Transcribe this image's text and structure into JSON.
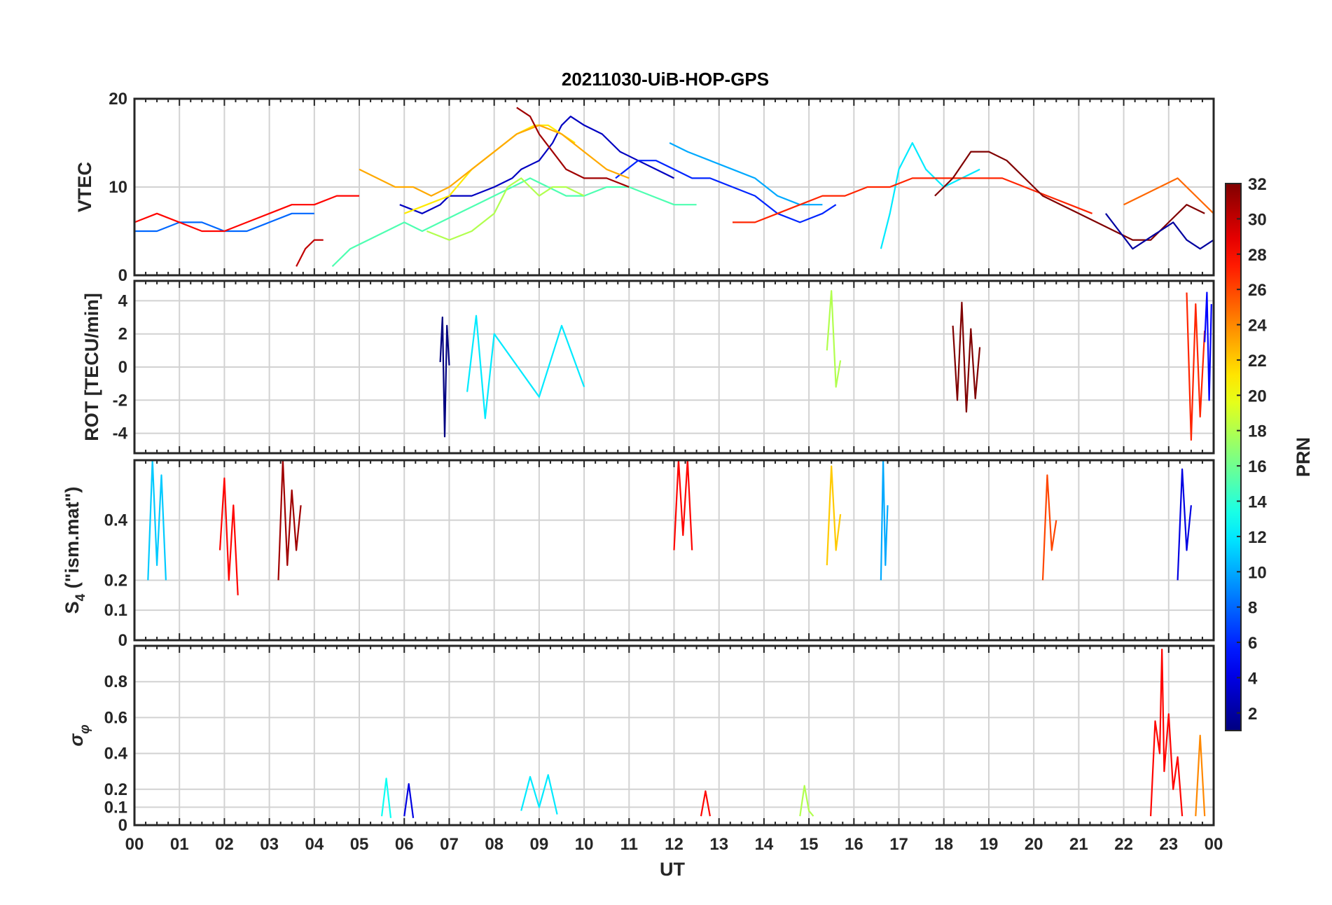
{
  "chart_data": {
    "type": "line",
    "title": "20211030-UiB-HOP-GPS",
    "xlabel": "UT",
    "x_tick_labels": [
      "00",
      "01",
      "02",
      "03",
      "04",
      "05",
      "06",
      "07",
      "08",
      "09",
      "10",
      "11",
      "12",
      "13",
      "14",
      "15",
      "16",
      "17",
      "18",
      "19",
      "20",
      "21",
      "22",
      "23",
      "00"
    ],
    "xlim_hours": [
      0,
      24
    ],
    "colorbar": {
      "label": "PRN",
      "range": [
        1,
        32
      ],
      "tick_labels": [
        "2",
        "4",
        "6",
        "8",
        "10",
        "12",
        "14",
        "16",
        "18",
        "20",
        "22",
        "24",
        "26",
        "28",
        "30",
        "32"
      ],
      "colormap": "jet"
    },
    "panels": [
      {
        "id": "vtec",
        "ylabel": "VTEC",
        "ylim": [
          0,
          20
        ],
        "y_ticks": [
          0,
          10,
          20
        ],
        "y_tick_labels": [
          "0",
          "10",
          "20"
        ],
        "series": [
          {
            "name": "PRN 3",
            "prn": 3,
            "t": [
              5.9,
              6.4,
              6.8,
              7.0,
              7.5,
              8.0,
              8.4,
              8.6,
              9.0,
              9.3,
              9.5,
              9.7,
              10.0,
              10.4,
              10.8,
              11.2,
              11.6,
              12.0
            ],
            "v": [
              8,
              7,
              8,
              9,
              9,
              10,
              11,
              12,
              13,
              15,
              17,
              18,
              17,
              16,
              14,
              13,
              12,
              11
            ]
          },
          {
            "name": "PRN 6",
            "prn": 6,
            "t": [
              10.7,
              11.2,
              11.6,
              12.0,
              12.4,
              12.8,
              13.3,
              13.8,
              14.3,
              14.8,
              15.3,
              15.6
            ],
            "v": [
              11,
              13,
              13,
              12,
              11,
              11,
              10,
              9,
              7,
              6,
              7,
              8
            ]
          },
          {
            "name": "PRN 10",
            "prn": 10,
            "t": [
              11.9,
              12.3,
              12.8,
              13.3,
              13.8,
              14.3,
              14.8,
              15.3
            ],
            "v": [
              15,
              14,
              13,
              12,
              11,
              9,
              8,
              8
            ]
          },
          {
            "name": "PRN 12",
            "prn": 12,
            "t": [
              16.6,
              16.8,
              17.0,
              17.3,
              17.6,
              18.0,
              18.4,
              18.8
            ],
            "v": [
              3,
              7,
              12,
              15,
              12,
              10,
              11,
              12
            ]
          },
          {
            "name": "PRN 15",
            "prn": 15,
            "t": [
              4.4,
              4.8,
              5.2,
              5.6,
              6.0,
              6.4,
              6.8,
              7.2,
              7.6,
              8.0,
              8.4,
              8.8,
              9.2,
              9.6,
              10.0,
              10.5,
              11.0,
              11.5,
              12.0,
              12.5
            ],
            "v": [
              1,
              3,
              4,
              5,
              6,
              5,
              6,
              7,
              8,
              9,
              10,
              11,
              10,
              9,
              9,
              10,
              10,
              9,
              8,
              8
            ]
          },
          {
            "name": "PRN 18",
            "prn": 18,
            "t": [
              6.5,
              7.0,
              7.5,
              8.0,
              8.3,
              8.6,
              8.8,
              9.0,
              9.3,
              9.6,
              10.0
            ],
            "v": [
              5,
              4,
              5,
              7,
              10,
              11,
              10,
              9,
              10,
              10,
              9
            ]
          },
          {
            "name": "PRN 21",
            "prn": 21,
            "t": [
              6.0,
              6.5,
              7.0,
              7.5,
              8.0,
              8.5,
              8.9,
              9.2,
              9.5,
              9.8
            ],
            "v": [
              7,
              8,
              9,
              12,
              14,
              16,
              17,
              17,
              16,
              15
            ]
          },
          {
            "name": "PRN 23",
            "prn": 23,
            "t": [
              5.0,
              5.4,
              5.8,
              6.2,
              6.6,
              7.0,
              7.5,
              8.0,
              8.5,
              9.0,
              9.5,
              10.0,
              10.5,
              11.0
            ],
            "v": [
              12,
              11,
              10,
              10,
              9,
              10,
              12,
              14,
              16,
              17,
              16,
              14,
              12,
              11
            ]
          },
          {
            "name": "PRN 27",
            "prn": 27,
            "t": [
              13.3,
              13.8,
              14.3,
              14.8,
              15.3,
              15.8,
              16.3,
              16.8,
              17.3,
              17.8,
              18.3,
              18.8,
              19.3,
              19.8,
              20.3,
              20.8,
              21.3
            ],
            "v": [
              6,
              6,
              7,
              8,
              9,
              9,
              10,
              10,
              11,
              11,
              11,
              11,
              11,
              10,
              9,
              8,
              7
            ]
          },
          {
            "name": "PRN 30",
            "prn": 30,
            "t": [
              3.6,
              3.8,
              4.0,
              4.2
            ],
            "v": [
              1,
              3,
              4,
              4
            ]
          },
          {
            "name": "PRN 31",
            "prn": 31,
            "t": [
              8.5,
              8.8,
              9.0,
              9.3,
              9.6,
              10.0,
              10.5,
              11.0
            ],
            "v": [
              19,
              18,
              16,
              14,
              12,
              11,
              11,
              10
            ]
          },
          {
            "name": "PRN 32",
            "prn": 32,
            "t": [
              17.8,
              18.2,
              18.6,
              19.0,
              19.4,
              19.8,
              20.2,
              20.6,
              21.0,
              21.4,
              21.8,
              22.2,
              22.6,
              23.0,
              23.4,
              23.8
            ],
            "v": [
              9,
              11,
              14,
              14,
              13,
              11,
              9,
              8,
              7,
              6,
              5,
              4,
              4,
              6,
              8,
              7
            ]
          },
          {
            "name": "PRN 2",
            "prn": 2,
            "t": [
              21.6,
              21.9,
              22.2,
              22.5,
              22.8,
              23.1,
              23.4,
              23.7,
              24.0
            ],
            "v": [
              7,
              5,
              3,
              4,
              5,
              6,
              4,
              3,
              4
            ]
          },
          {
            "name": "PRN 8",
            "prn": 8,
            "t": [
              0,
              0.5,
              1.0,
              1.5,
              2.0,
              2.5,
              3.0,
              3.5,
              4.0
            ],
            "v": [
              5,
              5,
              6,
              6,
              5,
              5,
              6,
              7,
              7
            ]
          },
          {
            "name": "PRN 28",
            "prn": 28,
            "t": [
              0,
              0.5,
              1.0,
              1.5,
              2.0,
              2.5,
              3.0,
              3.5,
              4.0,
              4.5,
              5.0
            ],
            "v": [
              6,
              7,
              6,
              5,
              5,
              6,
              7,
              8,
              8,
              9,
              9
            ]
          },
          {
            "name": "PRN 25",
            "prn": 25,
            "t": [
              22.0,
              22.4,
              22.8,
              23.2,
              23.6,
              24.0
            ],
            "v": [
              8,
              9,
              10,
              11,
              9,
              7
            ]
          }
        ]
      },
      {
        "id": "rot",
        "ylabel": "ROT [TECU/min]",
        "ylim": [
          -5.2,
          5.2
        ],
        "y_ticks": [
          -4,
          -2,
          0,
          2,
          4
        ],
        "y_tick_labels": [
          "-4",
          "-2",
          "0",
          "2",
          "4"
        ],
        "series": [
          {
            "name": "PRN 1",
            "prn": 1,
            "t": [
              6.8,
              6.85,
              6.9,
              6.95,
              7.0
            ],
            "v": [
              0.3,
              3.0,
              -4.2,
              2.5,
              0.1
            ]
          },
          {
            "name": "PRN 12",
            "prn": 12,
            "t": [
              7.4,
              7.6,
              7.8,
              8.0,
              9.0,
              9.5,
              10.0
            ],
            "v": [
              -1.5,
              3.1,
              -3.1,
              2.0,
              -1.8,
              2.5,
              -1.2
            ]
          },
          {
            "name": "PRN 18",
            "prn": 18,
            "t": [
              15.4,
              15.5,
              15.6,
              15.7
            ],
            "v": [
              1.0,
              4.6,
              -1.2,
              0.4
            ]
          },
          {
            "name": "PRN 32",
            "prn": 32,
            "t": [
              18.2,
              18.3,
              18.4,
              18.5,
              18.6,
              18.7,
              18.8
            ],
            "v": [
              2.5,
              -2.0,
              3.9,
              -2.7,
              2.3,
              -1.9,
              1.2
            ]
          },
          {
            "name": "PRN 27",
            "prn": 27,
            "t": [
              23.4,
              23.5,
              23.6,
              23.7,
              23.8
            ],
            "v": [
              4.5,
              -4.4,
              3.8,
              -3.0,
              2.2
            ]
          },
          {
            "name": "PRN 5",
            "prn": 5,
            "t": [
              23.8,
              23.85,
              23.9,
              23.95
            ],
            "v": [
              1.5,
              4.5,
              -2.0,
              3.8
            ]
          }
        ]
      },
      {
        "id": "s4",
        "ylabel": "S4 (\"ism.mat\")",
        "ylim": [
          0,
          0.6
        ],
        "y_ticks": [
          0,
          0.1,
          0.2,
          0.4
        ],
        "y_tick_labels": [
          "0",
          "0.1",
          "0.2",
          "0.4"
        ],
        "series": [
          {
            "name": "PRN 11",
            "prn": 11,
            "t": [
              0.3,
              0.4,
              0.5,
              0.6,
              0.7
            ],
            "v": [
              0.2,
              0.6,
              0.25,
              0.55,
              0.2
            ]
          },
          {
            "name": "PRN 28",
            "prn": 28,
            "t": [
              1.9,
              2.0,
              2.1,
              2.2,
              2.3
            ],
            "v": [
              0.3,
              0.54,
              0.2,
              0.45,
              0.15
            ]
          },
          {
            "name": "PRN 31",
            "prn": 31,
            "t": [
              3.2,
              3.3,
              3.4,
              3.5,
              3.6,
              3.7
            ],
            "v": [
              0.2,
              0.6,
              0.25,
              0.5,
              0.3,
              0.45
            ]
          },
          {
            "name": "PRN 28",
            "prn": 28,
            "t": [
              12.0,
              12.1,
              12.2,
              12.3,
              12.4
            ],
            "v": [
              0.3,
              0.6,
              0.35,
              0.6,
              0.3
            ]
          },
          {
            "name": "PRN 22",
            "prn": 22,
            "t": [
              15.4,
              15.5,
              15.6,
              15.7
            ],
            "v": [
              0.25,
              0.58,
              0.3,
              0.42
            ]
          },
          {
            "name": "PRN 10",
            "prn": 10,
            "t": [
              16.6,
              16.65,
              16.7,
              16.75
            ],
            "v": [
              0.2,
              0.6,
              0.25,
              0.45
            ]
          },
          {
            "name": "PRN 26",
            "prn": 26,
            "t": [
              20.2,
              20.3,
              20.4,
              20.5
            ],
            "v": [
              0.2,
              0.55,
              0.3,
              0.4
            ]
          },
          {
            "name": "PRN 4",
            "prn": 4,
            "t": [
              23.2,
              23.3,
              23.4,
              23.5
            ],
            "v": [
              0.2,
              0.57,
              0.3,
              0.45
            ]
          }
        ]
      },
      {
        "id": "sigma_phi",
        "ylabel": "σφ",
        "ylim": [
          0,
          1.0
        ],
        "y_ticks": [
          0,
          0.1,
          0.2,
          0.4,
          0.6,
          0.8
        ],
        "y_tick_labels": [
          "0",
          "0.1",
          "0.2",
          "0.4",
          "0.6",
          "0.8"
        ],
        "series": [
          {
            "name": "PRN 13",
            "prn": 13,
            "t": [
              5.5,
              5.6,
              5.7
            ],
            "v": [
              0.05,
              0.26,
              0.04
            ]
          },
          {
            "name": "PRN 4",
            "prn": 4,
            "t": [
              6.0,
              6.1,
              6.2
            ],
            "v": [
              0.05,
              0.23,
              0.04
            ]
          },
          {
            "name": "PRN 12",
            "prn": 12,
            "t": [
              8.6,
              8.8,
              9.0,
              9.2,
              9.4
            ],
            "v": [
              0.08,
              0.27,
              0.1,
              0.28,
              0.06
            ]
          },
          {
            "name": "PRN 28",
            "prn": 28,
            "t": [
              12.6,
              12.7,
              12.8
            ],
            "v": [
              0.05,
              0.19,
              0.05
            ]
          },
          {
            "name": "PRN 18",
            "prn": 18,
            "t": [
              14.8,
              14.9,
              15.0,
              15.1
            ],
            "v": [
              0.05,
              0.22,
              0.08,
              0.05
            ]
          },
          {
            "name": "PRN 28",
            "prn": 28,
            "t": [
              22.6,
              22.7,
              22.8,
              22.85,
              22.9,
              23.0,
              23.1,
              23.2,
              23.3
            ],
            "v": [
              0.05,
              0.58,
              0.4,
              0.98,
              0.3,
              0.62,
              0.2,
              0.38,
              0.05
            ]
          },
          {
            "name": "PRN 24",
            "prn": 24,
            "t": [
              23.6,
              23.7,
              23.8
            ],
            "v": [
              0.05,
              0.5,
              0.05
            ]
          }
        ]
      }
    ]
  }
}
